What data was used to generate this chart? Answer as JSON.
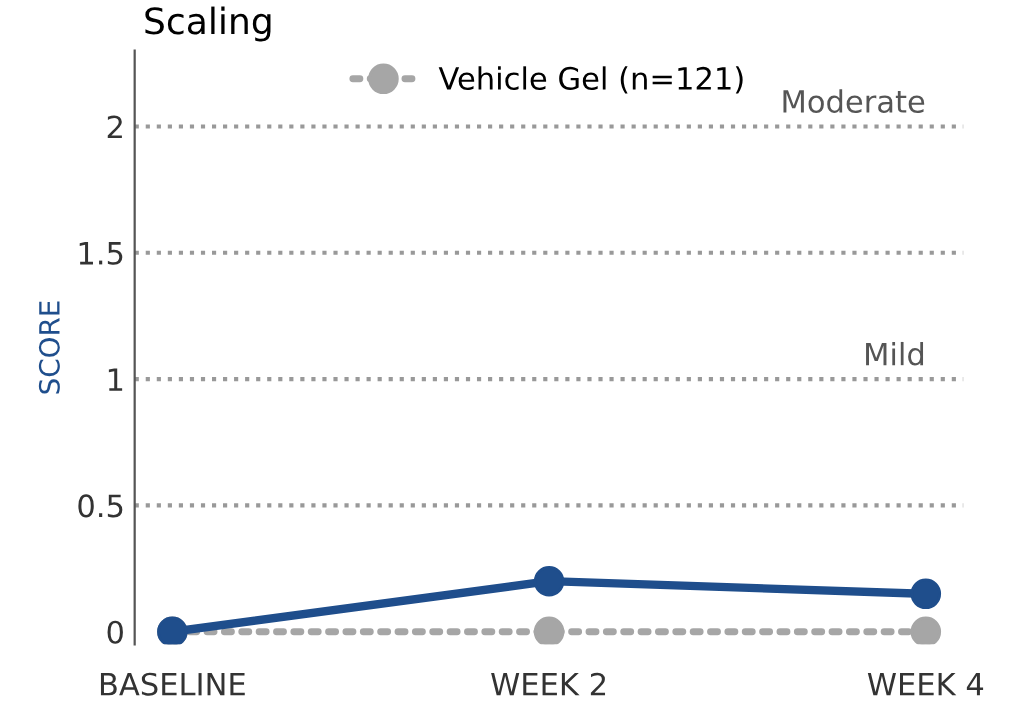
{
  "chart_data": {
    "type": "line",
    "title": "Scaling",
    "ylabel": "SCORE",
    "categories": [
      "BASELINE",
      "WEEK 2",
      "WEEK 4"
    ],
    "series": [
      {
        "color": "#1f4e8c",
        "values": [
          0,
          0.2,
          0.15
        ],
        "marker": "circle",
        "line_style": "solid"
      },
      {
        "name": "Vehicle Gel (n=121)",
        "color": "#a6a6a6",
        "values": [
          0,
          0,
          0
        ],
        "marker": "circle",
        "line_style": "dotted"
      }
    ],
    "ylim": [
      -0.05,
      2.3
    ],
    "yticks": [
      0,
      0.5,
      1,
      1.5,
      2
    ],
    "ref_lines": [
      {
        "axis": "y",
        "value": 0.5,
        "color": "#999999",
        "line_style": "dotted"
      },
      {
        "axis": "y",
        "value": 1,
        "label": "Mild",
        "color": "#999999",
        "line_style": "dotted"
      },
      {
        "axis": "y",
        "value": 1.5,
        "color": "#999999",
        "line_style": "dotted"
      },
      {
        "axis": "y",
        "value": 2,
        "label": "Moderate",
        "color": "#999999",
        "line_style": "dotted"
      }
    ],
    "grid": false,
    "legend": "top"
  }
}
